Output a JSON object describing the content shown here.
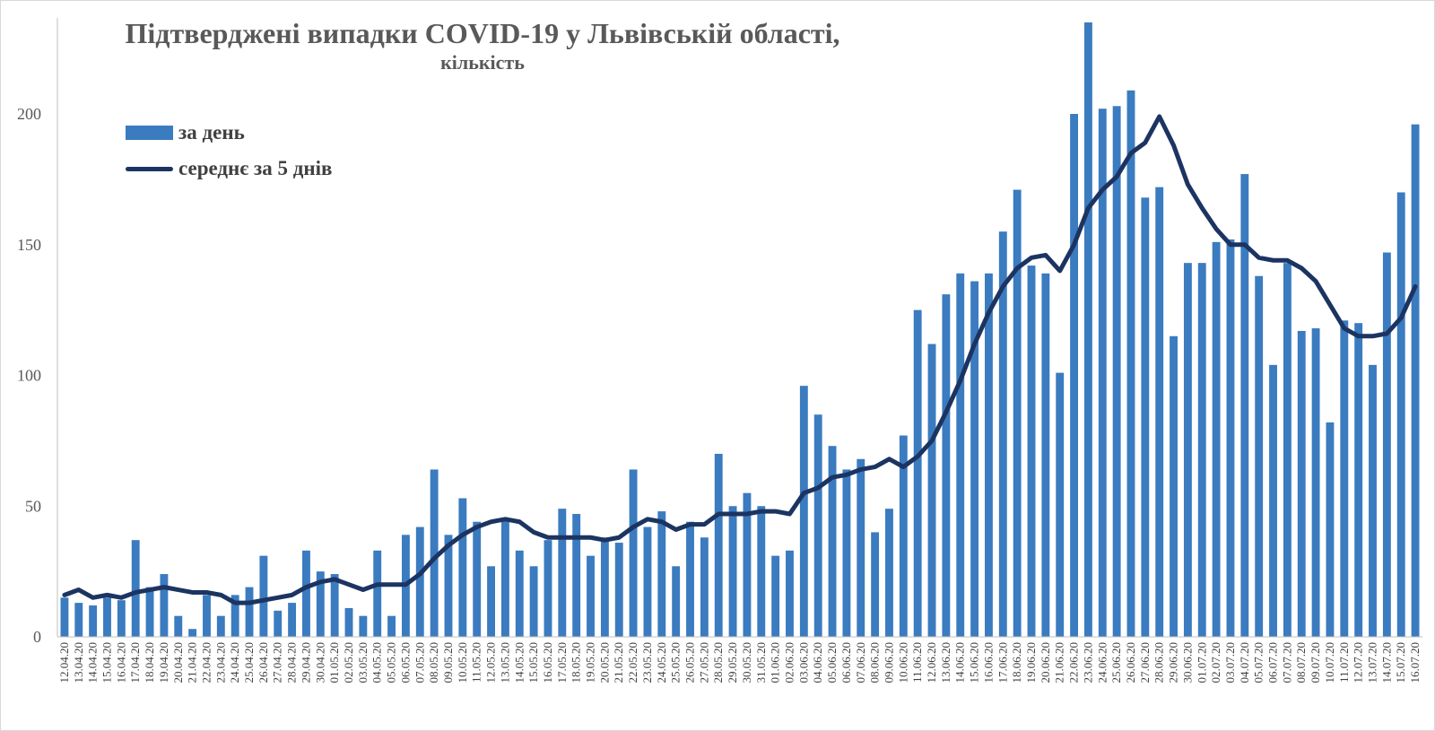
{
  "chart_data": {
    "type": "bar+line",
    "title": "Підтверджені випадки COVID-19 у Львівській області,",
    "subtitle": "кількість",
    "ylim": [
      0,
      235
    ],
    "yticks": [
      0,
      50,
      100,
      150,
      200
    ],
    "grid": false,
    "legend_position": "top-left",
    "colors": {
      "bars": "#3b7bc0",
      "line": "#1c3461"
    },
    "categories": [
      "12.04.20",
      "13.04.20",
      "14.04.20",
      "15.04.20",
      "16.04.20",
      "17.04.20",
      "18.04.20",
      "19.04.20",
      "20.04.20",
      "21.04.20",
      "22.04.20",
      "23.04.20",
      "24.04.20",
      "25.04.20",
      "26.04.20",
      "27.04.20",
      "28.04.20",
      "29.04.20",
      "30.04.20",
      "01.05.20",
      "02.05.20",
      "03.05.20",
      "04.05.20",
      "05.05.20",
      "06.05.20",
      "07.05.20",
      "08.05.20",
      "09.05.20",
      "10.05.20",
      "11.05.20",
      "12.05.20",
      "13.05.20",
      "14.05.20",
      "15.05.20",
      "16.05.20",
      "17.05.20",
      "18.05.20",
      "19.05.20",
      "20.05.20",
      "21.05.20",
      "22.05.20",
      "23.05.20",
      "24.05.20",
      "25.05.20",
      "26.05.20",
      "27.05.20",
      "28.05.20",
      "29.05.20",
      "30.05.20",
      "31.05.20",
      "01.06.20",
      "02.06.20",
      "03.06.20",
      "04.06.20",
      "05.06.20",
      "06.06.20",
      "07.06.20",
      "08.06.20",
      "09.06.20",
      "10.06.20",
      "11.06.20",
      "12.06.20",
      "13.06.20",
      "14.06.20",
      "15.06.20",
      "16.06.20",
      "17.06.20",
      "18.06.20",
      "19.06.20",
      "20.06.20",
      "21.06.20",
      "22.06.20",
      "23.06.20",
      "24.06.20",
      "25.06.20",
      "26.06.20",
      "27.06.20",
      "28.06.20",
      "29.06.20",
      "30.06.20",
      "01.07.20",
      "02.07.20",
      "03.07.20",
      "04.07.20",
      "05.07.20",
      "06.07.20",
      "07.07.20",
      "08.07.20",
      "09.07.20",
      "10.07.20",
      "11.07.20",
      "12.07.20",
      "13.07.20",
      "14.07.20",
      "15.07.20",
      "16.07.20"
    ],
    "series": [
      {
        "name": "за день",
        "type": "bar",
        "values": [
          15,
          13,
          12,
          15,
          14,
          37,
          19,
          24,
          8,
          3,
          16,
          8,
          16,
          19,
          31,
          10,
          13,
          33,
          25,
          24,
          11,
          8,
          33,
          8,
          39,
          42,
          64,
          39,
          53,
          44,
          27,
          45,
          33,
          27,
          37,
          49,
          47,
          31,
          38,
          36,
          64,
          42,
          48,
          27,
          44,
          38,
          70,
          50,
          55,
          50,
          31,
          33,
          96,
          85,
          73,
          64,
          68,
          40,
          49,
          77,
          125,
          112,
          131,
          139,
          136,
          139,
          155,
          171,
          142,
          139,
          101,
          200,
          235,
          202,
          203,
          209,
          168,
          172,
          115,
          143,
          143,
          151,
          152,
          177,
          138,
          104,
          143,
          117,
          118,
          82,
          121,
          120,
          104,
          147,
          170,
          196
        ]
      },
      {
        "name": "середнє за 5 днів",
        "type": "line",
        "values": [
          16,
          18,
          15,
          16,
          15,
          17,
          18,
          19,
          18,
          17,
          17,
          16,
          13,
          13,
          14,
          15,
          16,
          19,
          21,
          22,
          20,
          18,
          20,
          20,
          20,
          24,
          30,
          35,
          39,
          42,
          44,
          45,
          44,
          40,
          38,
          38,
          38,
          38,
          37,
          38,
          42,
          45,
          44,
          41,
          43,
          43,
          47,
          47,
          47,
          48,
          48,
          47,
          55,
          57,
          61,
          62,
          64,
          65,
          68,
          65,
          69,
          75,
          86,
          98,
          112,
          124,
          134,
          141,
          145,
          146,
          140,
          150,
          164,
          171,
          176,
          185,
          189,
          199,
          188,
          173,
          164,
          156,
          150,
          150,
          145,
          144,
          144,
          141,
          136,
          127,
          118,
          115,
          115,
          116,
          122,
          134
        ]
      }
    ]
  }
}
